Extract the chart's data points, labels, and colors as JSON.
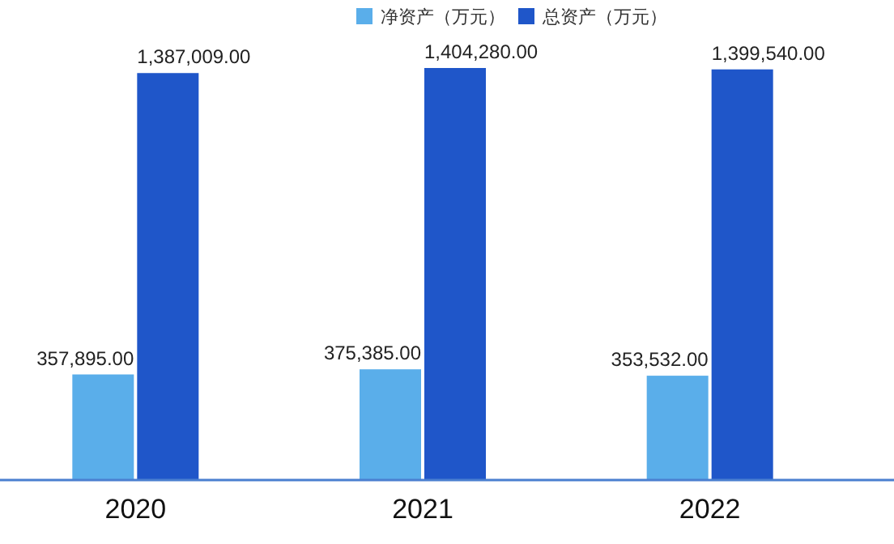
{
  "chart_data": {
    "type": "bar",
    "categories": [
      "2020",
      "2021",
      "2022"
    ],
    "series": [
      {
        "name": "净资产（万元）",
        "color": "#5aaeea",
        "values": [
          357895,
          375385,
          353532
        ],
        "value_labels": [
          "357,895.00",
          "375,385.00",
          "353,532.00"
        ]
      },
      {
        "name": "总资产（万元）",
        "color": "#1f56c9",
        "values": [
          1387009,
          1404280,
          1399540
        ],
        "value_labels": [
          "1,387,009.00",
          "1,404,280.00",
          "1,399,540.00"
        ]
      }
    ],
    "legend": "top",
    "grid": false
  }
}
